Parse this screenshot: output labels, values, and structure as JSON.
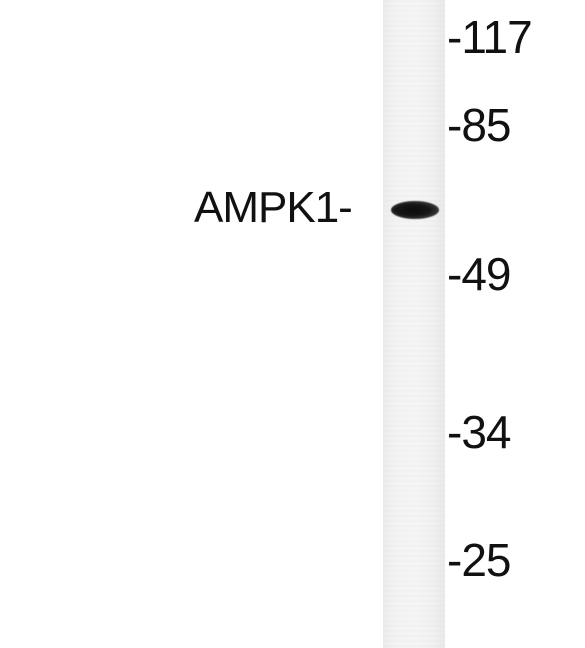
{
  "band_label": "AMPK1-",
  "markers": [
    {
      "text": "-117"
    },
    {
      "text": "-85"
    },
    {
      "text": "-49"
    },
    {
      "text": "-34"
    },
    {
      "text": "-25"
    }
  ]
}
